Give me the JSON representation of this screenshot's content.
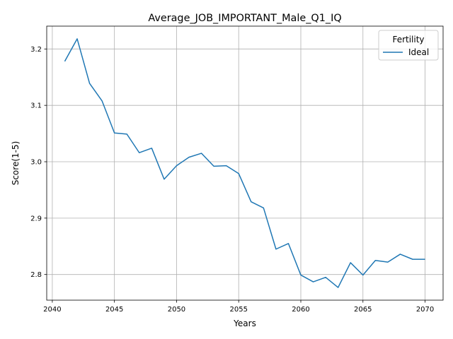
{
  "chart_data": {
    "type": "line",
    "title": "Average_JOB_IMPORTANT_Male_Q1_IQ",
    "xlabel": "Years",
    "ylabel": "Score(1-5)",
    "xlim": [
      2039.55,
      2071.45
    ],
    "ylim": [
      2.7545,
      3.2405
    ],
    "xticks": [
      2040,
      2045,
      2050,
      2055,
      2060,
      2065,
      2070
    ],
    "yticks": [
      2.8,
      2.9,
      3.0,
      3.1,
      3.2
    ],
    "ytick_labels": [
      "2.8",
      "2.9",
      "3.0",
      "3.1",
      "3.2"
    ],
    "grid": true,
    "legend": {
      "title": "Fertility",
      "placement": "top-right"
    },
    "series": [
      {
        "name": "Ideal",
        "color": "#1f77b4",
        "x": [
          2041,
          2042,
          2043,
          2044,
          2045,
          2046,
          2047,
          2048,
          2049,
          2050,
          2051,
          2052,
          2053,
          2054,
          2055,
          2056,
          2057,
          2058,
          2059,
          2060,
          2061,
          2062,
          2063,
          2064,
          2065,
          2066,
          2067,
          2068,
          2069,
          2070
        ],
        "y": [
          3.178,
          3.218,
          3.139,
          3.108,
          3.051,
          3.049,
          3.016,
          3.024,
          2.969,
          2.993,
          3.008,
          3.015,
          2.992,
          2.993,
          2.979,
          2.929,
          2.918,
          2.845,
          2.855,
          2.799,
          2.787,
          2.795,
          2.777,
          2.821,
          2.799,
          2.825,
          2.822,
          2.836,
          2.827,
          2.827
        ]
      }
    ]
  }
}
